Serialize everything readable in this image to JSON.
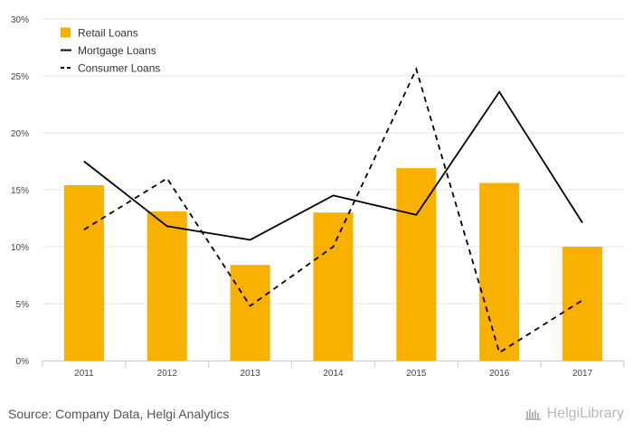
{
  "chart_data": {
    "type": "bar",
    "categories": [
      "2011",
      "2012",
      "2013",
      "2014",
      "2015",
      "2016",
      "2017"
    ],
    "series": [
      {
        "name": "Retail Loans",
        "kind": "bar",
        "values": [
          15.4,
          13.1,
          8.4,
          13.0,
          16.9,
          15.6,
          10.0
        ]
      },
      {
        "name": "Mortgage Loans",
        "kind": "line",
        "style": "solid",
        "values": [
          17.5,
          11.8,
          10.6,
          14.5,
          12.8,
          23.6,
          12.1
        ]
      },
      {
        "name": "Consumer Loans",
        "kind": "line",
        "style": "dashed",
        "values": [
          11.5,
          16.0,
          4.8,
          10.0,
          25.6,
          0.7,
          5.3
        ]
      }
    ],
    "yticks": [
      "0%",
      "5%",
      "10%",
      "15%",
      "20%",
      "25%",
      "30%"
    ],
    "ytick_values": [
      0,
      5,
      10,
      15,
      20,
      25,
      30
    ],
    "ylim": [
      0,
      30
    ],
    "ylabel": "",
    "xlabel": "",
    "title": "",
    "legend_position": "top-left",
    "grid": true
  },
  "colors": {
    "bar": "#f8b100",
    "line": "#000000",
    "grid": "#e6e6e6",
    "axis_text": "#444444"
  },
  "footer": {
    "source": "Source: Company Data, Helgi Analytics",
    "brand": "HelgiLibrary"
  }
}
